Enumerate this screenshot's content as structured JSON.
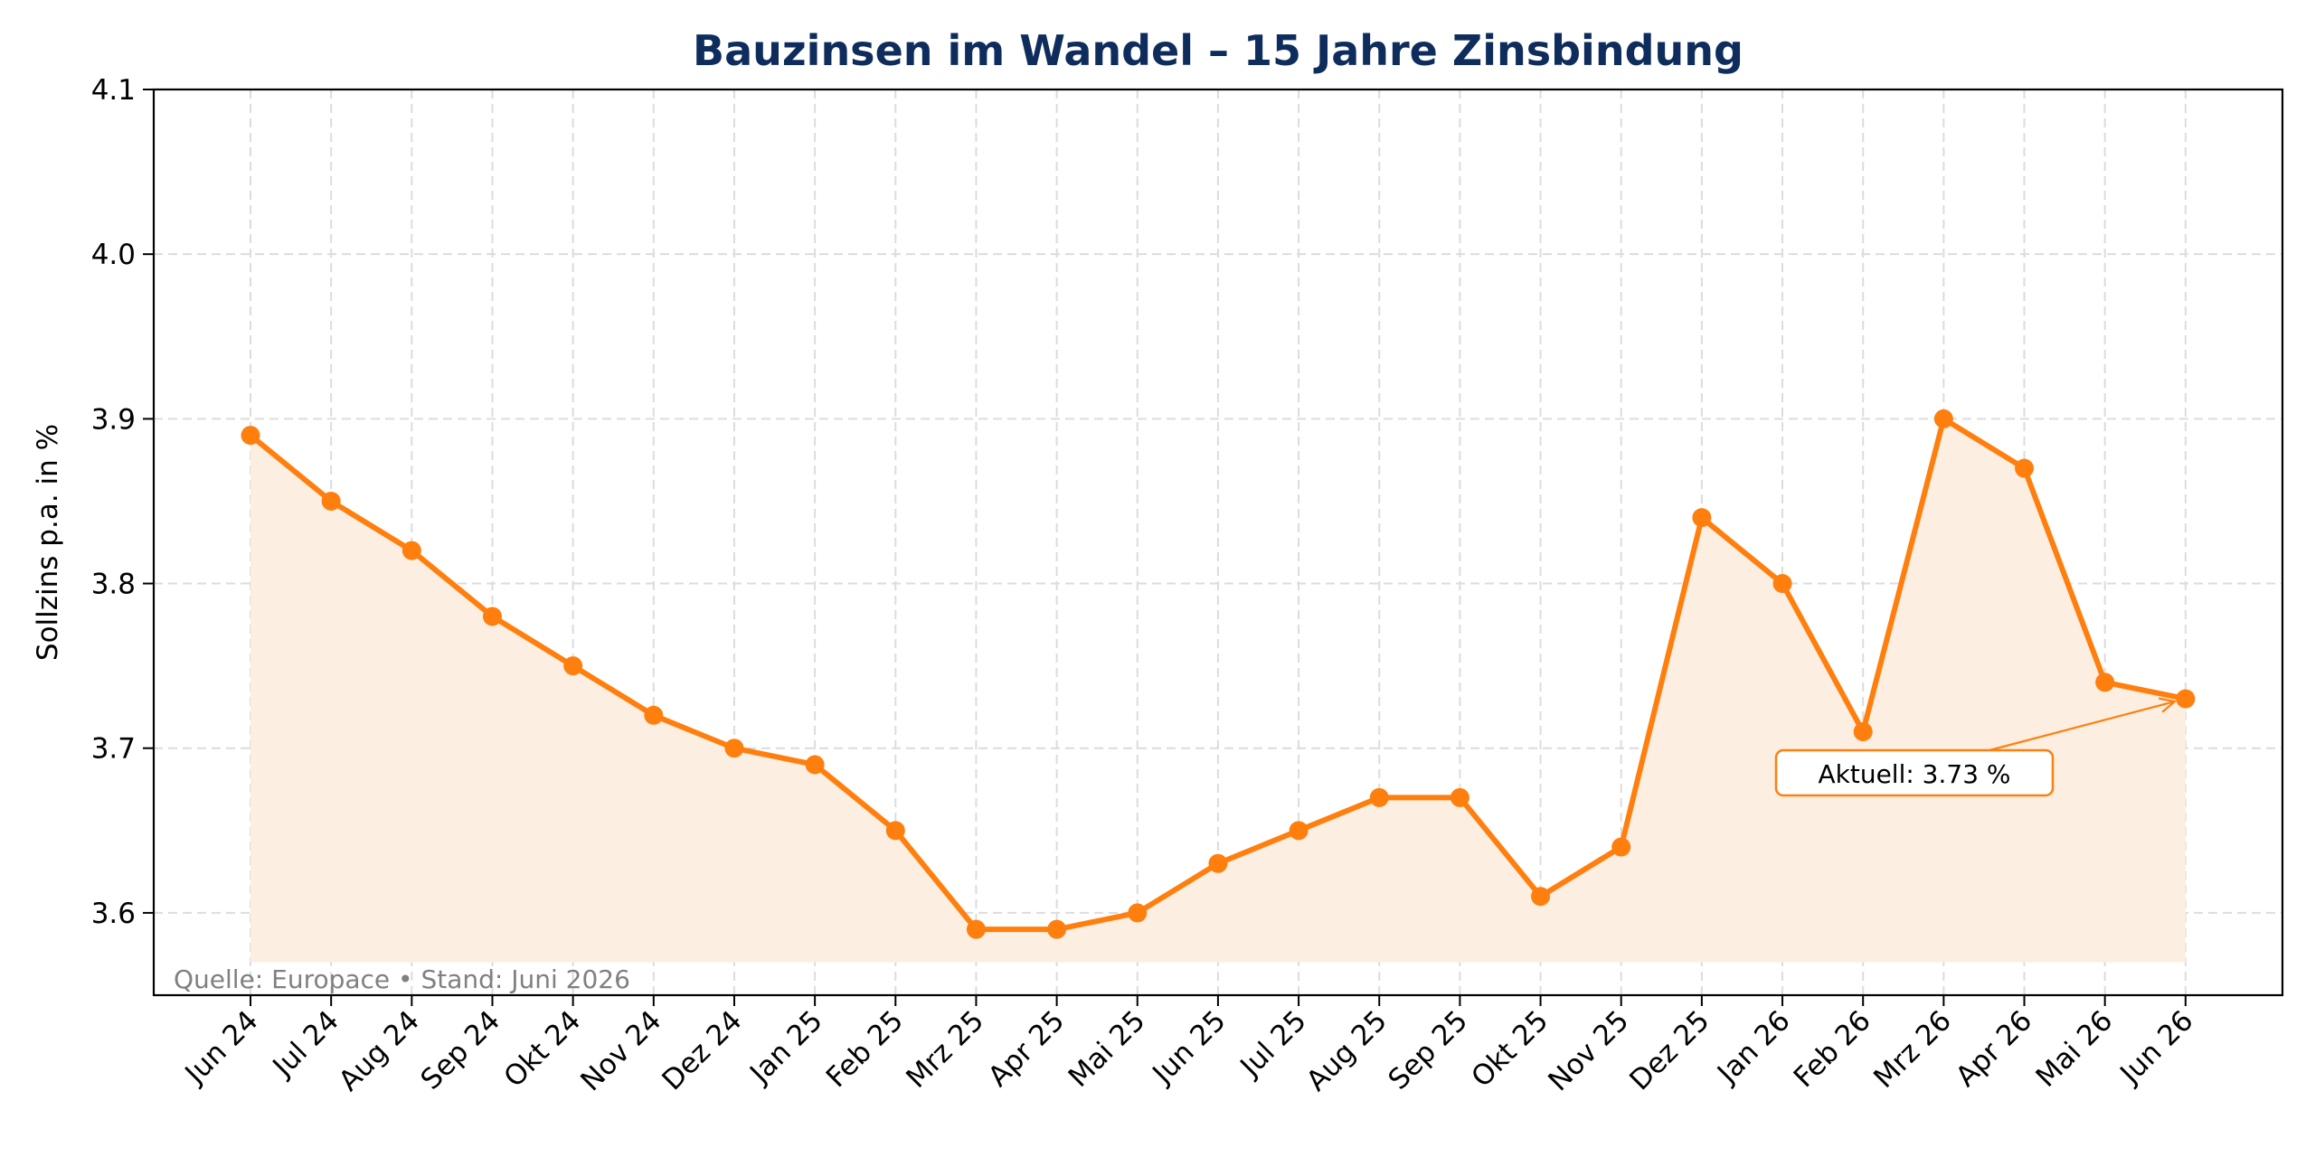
{
  "chart_data": {
    "type": "line",
    "title": "Bauzinsen im Wandel – 15 Jahre Zinsbindung",
    "xlabel": "",
    "ylabel": "Sollzins p.a. in %",
    "ylim": [
      3.55,
      4.1
    ],
    "yticks": [
      "3.6",
      "3.7",
      "3.8",
      "3.9",
      "4.0",
      "4.1"
    ],
    "grid": true,
    "categories": [
      "Jun 24",
      "Jul 24",
      "Aug 24",
      "Sep 24",
      "Okt 24",
      "Nov 24",
      "Dez 24",
      "Jan 25",
      "Feb 25",
      "Mrz 25",
      "Apr 25",
      "Mai 25",
      "Jun 25",
      "Jul 25",
      "Aug 25",
      "Sep 25",
      "Okt 25",
      "Nov 25",
      "Dez 25",
      "Jan 26",
      "Feb 26",
      "Mrz 26",
      "Apr 26",
      "Mai 26",
      "Jun 26"
    ],
    "series": [
      {
        "values": [
          3.89,
          3.85,
          3.82,
          3.78,
          3.75,
          3.72,
          3.7,
          3.69,
          3.65,
          3.59,
          3.59,
          3.6,
          3.63,
          3.65,
          3.67,
          3.67,
          3.61,
          3.64,
          3.84,
          3.8,
          3.71,
          3.9,
          3.87,
          3.74,
          3.73
        ],
        "color": "#ff7f0e"
      }
    ],
    "fill_baseline": 3.57,
    "annotation": {
      "text": "Aktuell: 3.73 %",
      "target_index": 24
    },
    "source_note": "Quelle: Europace • Stand: Juni 2026"
  },
  "colors": {
    "line": "#ff7f0e",
    "fill": "#fdeee2",
    "title": "#0f2d5c",
    "grid": "#dcdcdc",
    "source": "#808080"
  }
}
